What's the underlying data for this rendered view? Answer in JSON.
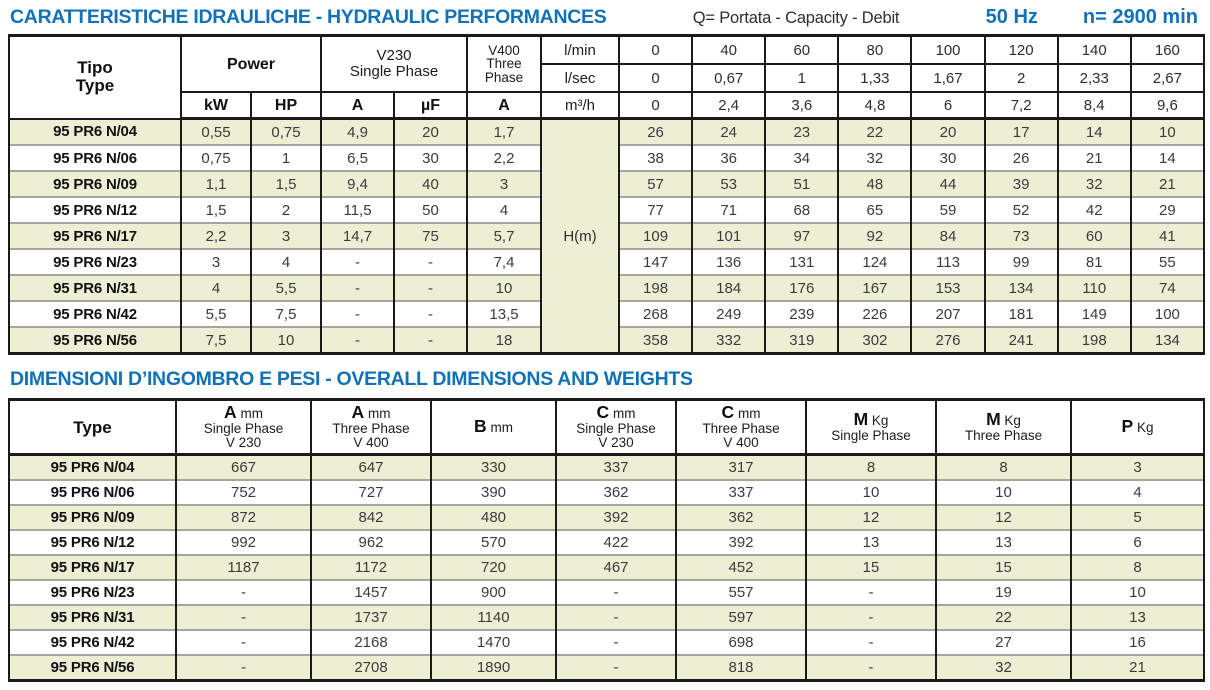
{
  "header": {
    "title": "CARATTERISTICHE IDRAULICHE - HYDRAULIC PERFORMANCES",
    "capacity_legend": "Q= Portata - Capacity - Debit",
    "frequency": "50 Hz",
    "speed": "n= 2900 min"
  },
  "hydraulic": {
    "headers": {
      "tipo": "Tipo",
      "type": "Type",
      "power": "Power",
      "kw": "kW",
      "hp": "HP",
      "v230": [
        "V230",
        "Single Phase"
      ],
      "a230": "A",
      "uf": "µF",
      "v400": [
        "V400",
        "Three",
        "Phase"
      ],
      "a400": "A",
      "head_label": "H(m)"
    },
    "flow_rows": [
      {
        "unit": "l/min",
        "values": [
          "0",
          "40",
          "60",
          "80",
          "100",
          "120",
          "140",
          "160"
        ]
      },
      {
        "unit": "l/sec",
        "values": [
          "0",
          "0,67",
          "1",
          "1,33",
          "1,67",
          "2",
          "2,33",
          "2,67"
        ]
      },
      {
        "unit": "m³/h",
        "values": [
          "0",
          "2,4",
          "3,6",
          "4,8",
          "6",
          "7,2",
          "8,4",
          "9,6"
        ]
      }
    ],
    "rows": [
      {
        "type": "95 PR6 N/04",
        "kw": "0,55",
        "hp": "0,75",
        "a": "4,9",
        "uf": "20",
        "a400": "1,7",
        "h": [
          "26",
          "24",
          "23",
          "22",
          "20",
          "17",
          "14",
          "10"
        ]
      },
      {
        "type": "95 PR6 N/06",
        "kw": "0,75",
        "hp": "1",
        "a": "6,5",
        "uf": "30",
        "a400": "2,2",
        "h": [
          "38",
          "36",
          "34",
          "32",
          "30",
          "26",
          "21",
          "14"
        ]
      },
      {
        "type": "95 PR6 N/09",
        "kw": "1,1",
        "hp": "1,5",
        "a": "9,4",
        "uf": "40",
        "a400": "3",
        "h": [
          "57",
          "53",
          "51",
          "48",
          "44",
          "39",
          "32",
          "21"
        ]
      },
      {
        "type": "95 PR6 N/12",
        "kw": "1,5",
        "hp": "2",
        "a": "11,5",
        "uf": "50",
        "a400": "4",
        "h": [
          "77",
          "71",
          "68",
          "65",
          "59",
          "52",
          "42",
          "29"
        ]
      },
      {
        "type": "95 PR6 N/17",
        "kw": "2,2",
        "hp": "3",
        "a": "14,7",
        "uf": "75",
        "a400": "5,7",
        "h": [
          "109",
          "101",
          "97",
          "92",
          "84",
          "73",
          "60",
          "41"
        ]
      },
      {
        "type": "95 PR6 N/23",
        "kw": "3",
        "hp": "4",
        "a": "-",
        "uf": "-",
        "a400": "7,4",
        "h": [
          "147",
          "136",
          "131",
          "124",
          "113",
          "99",
          "81",
          "55"
        ]
      },
      {
        "type": "95 PR6 N/31",
        "kw": "4",
        "hp": "5,5",
        "a": "-",
        "uf": "-",
        "a400": "10",
        "h": [
          "198",
          "184",
          "176",
          "167",
          "153",
          "134",
          "110",
          "74"
        ]
      },
      {
        "type": "95 PR6 N/42",
        "kw": "5,5",
        "hp": "7,5",
        "a": "-",
        "uf": "-",
        "a400": "13,5",
        "h": [
          "268",
          "249",
          "239",
          "226",
          "207",
          "181",
          "149",
          "100"
        ]
      },
      {
        "type": "95 PR6 N/56",
        "kw": "7,5",
        "hp": "10",
        "a": "-",
        "uf": "-",
        "a400": "18",
        "h": [
          "358",
          "332",
          "319",
          "302",
          "276",
          "241",
          "198",
          "134"
        ]
      }
    ]
  },
  "dimensions": {
    "title": "DIMENSIONI D’INGOMBRO E PESI - OVERALL DIMENSIONS AND WEIGHTS",
    "columns": [
      {
        "label": "Type",
        "letter": "",
        "unit": "",
        "line2": "",
        "line3": ""
      },
      {
        "label": "",
        "letter": "A",
        "unit": "mm",
        "line2": "Single Phase",
        "line3": "V 230"
      },
      {
        "label": "",
        "letter": "A",
        "unit": "mm",
        "line2": "Three Phase",
        "line3": "V 400"
      },
      {
        "label": "",
        "letter": "B",
        "unit": "mm",
        "line2": "",
        "line3": ""
      },
      {
        "label": "",
        "letter": "C",
        "unit": "mm",
        "line2": "Single Phase",
        "line3": "V 230"
      },
      {
        "label": "",
        "letter": "C",
        "unit": "mm",
        "line2": "Three Phase",
        "line3": "V 400"
      },
      {
        "label": "",
        "letter": "M",
        "unit": "Kg",
        "line2": "Single Phase",
        "line3": ""
      },
      {
        "label": "",
        "letter": "M",
        "unit": "Kg",
        "line2": "Three Phase",
        "line3": ""
      },
      {
        "label": "",
        "letter": "P",
        "unit": "Kg",
        "line2": "",
        "line3": ""
      }
    ],
    "rows": [
      {
        "type": "95 PR6 N/04",
        "values": [
          "667",
          "647",
          "330",
          "337",
          "317",
          "8",
          "8",
          "3"
        ]
      },
      {
        "type": "95 PR6 N/06",
        "values": [
          "752",
          "727",
          "390",
          "362",
          "337",
          "10",
          "10",
          "4"
        ]
      },
      {
        "type": "95 PR6 N/09",
        "values": [
          "872",
          "842",
          "480",
          "392",
          "362",
          "12",
          "12",
          "5"
        ]
      },
      {
        "type": "95 PR6 N/12",
        "values": [
          "992",
          "962",
          "570",
          "422",
          "392",
          "13",
          "13",
          "6"
        ]
      },
      {
        "type": "95 PR6 N/17",
        "values": [
          "1187",
          "1172",
          "720",
          "467",
          "452",
          "15",
          "15",
          "8"
        ]
      },
      {
        "type": "95 PR6 N/23",
        "values": [
          "-",
          "1457",
          "900",
          "-",
          "557",
          "-",
          "19",
          "10"
        ]
      },
      {
        "type": "95 PR6 N/31",
        "values": [
          "-",
          "1737",
          "1140",
          "-",
          "597",
          "-",
          "22",
          "13"
        ]
      },
      {
        "type": "95 PR6 N/42",
        "values": [
          "-",
          "2168",
          "1470",
          "-",
          "698",
          "-",
          "27",
          "16"
        ]
      },
      {
        "type": "95 PR6 N/56",
        "values": [
          "-",
          "2708",
          "1890",
          "-",
          "818",
          "-",
          "32",
          "21"
        ]
      }
    ]
  },
  "colors": {
    "accent_blue": "#1371b8",
    "stripe_green": "#edefd5"
  }
}
